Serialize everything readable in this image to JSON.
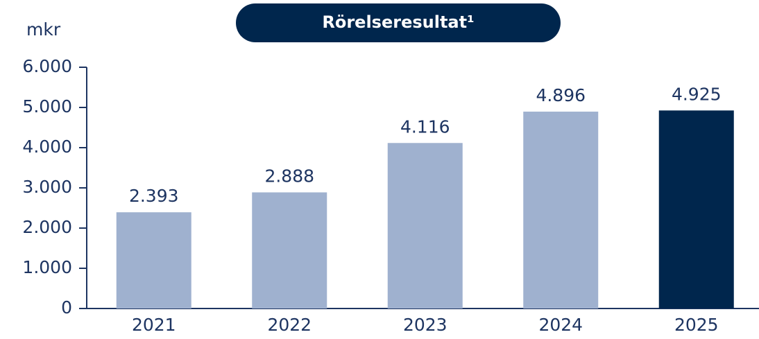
{
  "chart_data": {
    "type": "bar",
    "title": "Rörelseresultat¹",
    "y_label": "mkr",
    "categories": [
      "2021",
      "2022",
      "2023",
      "2024",
      "2025"
    ],
    "values": [
      2393,
      2888,
      4116,
      4896,
      4925
    ],
    "value_labels": [
      "2.393",
      "2.888",
      "4.116",
      "4.896",
      "4.925"
    ],
    "colors": [
      "#9fb1cf",
      "#9fb1cf",
      "#9fb1cf",
      "#9fb1cf",
      "#00264d"
    ],
    "ylim": [
      0,
      6000
    ],
    "yticks": [
      {
        "value": 0,
        "label": "0"
      },
      {
        "value": 1000,
        "label": "1.000"
      },
      {
        "value": 2000,
        "label": "2.000"
      },
      {
        "value": 3000,
        "label": "3.000"
      },
      {
        "value": 4000,
        "label": "4.000"
      },
      {
        "value": 5000,
        "label": "5.000"
      },
      {
        "value": 6000,
        "label": "6.000"
      }
    ],
    "grid": false
  }
}
